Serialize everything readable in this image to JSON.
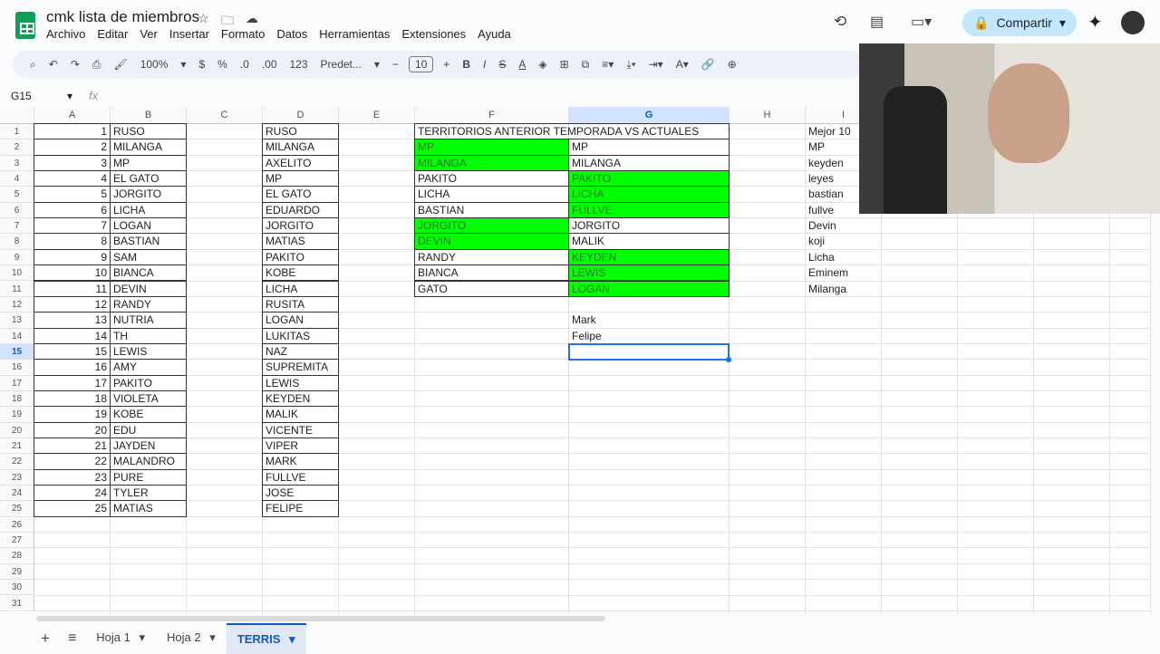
{
  "doc": {
    "title": "cmk lista de miembros",
    "menu": [
      "Archivo",
      "Editar",
      "Ver",
      "Insertar",
      "Formato",
      "Datos",
      "Herramientas",
      "Extensiones",
      "Ayuda"
    ],
    "share": "Compartir"
  },
  "toolbar": {
    "zoom": "100%",
    "currency": "$",
    "percent": "%",
    "dec_less": ".0",
    "dec_more": ".00",
    "format_num": "123",
    "font": "Predet...",
    "font_size": "10",
    "bold": "B",
    "italic": "I",
    "strike": "S",
    "text_color": "A"
  },
  "formula": {
    "namebox": "G15",
    "fx": "fx",
    "value": ""
  },
  "columns": [
    "A",
    "B",
    "C",
    "D",
    "E",
    "F",
    "G",
    "H",
    "I"
  ],
  "selected": {
    "col": "G",
    "row": 15
  },
  "colA": [
    1,
    2,
    3,
    4,
    5,
    6,
    7,
    8,
    9,
    10,
    11,
    12,
    13,
    14,
    15,
    16,
    17,
    18,
    19,
    20,
    21,
    22,
    23,
    24,
    25
  ],
  "colB": [
    "RUSO",
    "MILANGA",
    "MP",
    "EL GATO",
    "JORGITO",
    "LICHA",
    "LOGAN",
    "BASTIAN",
    "SAM",
    "BIANCA",
    "DEVIN",
    "RANDY",
    "NUTRIA",
    "TH",
    "LEWIS",
    "AMY",
    "PAKITO",
    "VIOLETA",
    "KOBE",
    "EDU",
    "JAYDEN",
    "MALANDRO",
    "PURE",
    "TYLER",
    "MATIAS"
  ],
  "colD": [
    "RUSO",
    "MILANGA",
    "AXELITO",
    "MP",
    "EL GATO",
    "EDUARDO",
    "JORGITO",
    "MATIAS",
    "PAKITO",
    "KOBE",
    "LICHA",
    "RUSITA",
    "LOGAN",
    "LUKITAS",
    "NAZ",
    "SUPREMITA",
    "LEWIS",
    "KEYDEN",
    "MALIK",
    "VICENTE",
    "VIPER",
    "MARK",
    "FULLVE",
    "JOSE",
    "FELIPE"
  ],
  "territories": {
    "title": "TERRITORIOS ANTERIOR TEMPORADA VS ACTUALES",
    "previous": [
      {
        "name": "MP",
        "green": true
      },
      {
        "name": "MILANGA",
        "green": true
      },
      {
        "name": "PAKITO",
        "green": false
      },
      {
        "name": "LICHA",
        "green": false
      },
      {
        "name": "BASTIAN",
        "green": false
      },
      {
        "name": "JORGITO",
        "green": true
      },
      {
        "name": "DEVIN",
        "green": true
      },
      {
        "name": "RANDY",
        "green": false
      },
      {
        "name": "BIANCA",
        "green": false
      },
      {
        "name": "GATO",
        "green": false
      }
    ],
    "current": [
      {
        "name": "MP",
        "green": false
      },
      {
        "name": "MILANGA",
        "green": false
      },
      {
        "name": "PAKITO",
        "green": true
      },
      {
        "name": "LICHA",
        "green": true
      },
      {
        "name": "FULLVE",
        "green": true
      },
      {
        "name": "JORGITO",
        "green": false
      },
      {
        "name": "MALIK",
        "green": false
      },
      {
        "name": "KEYDEN",
        "green": true
      },
      {
        "name": "LEWIS",
        "green": true
      },
      {
        "name": "LOGAN",
        "green": true
      }
    ],
    "extra": [
      "Mark",
      "Felipe"
    ],
    "highlight_color": "#00ff00"
  },
  "colI": [
    "Mejor 10",
    "MP",
    "keyden",
    "leyes",
    "bastian",
    "fullve",
    "Devin",
    "koji",
    "Licha",
    "Eminem",
    "Milanga"
  ],
  "tabs": [
    {
      "label": "Hoja 1"
    },
    {
      "label": "Hoja 2"
    },
    {
      "label": "TERRIS",
      "active": true
    }
  ]
}
